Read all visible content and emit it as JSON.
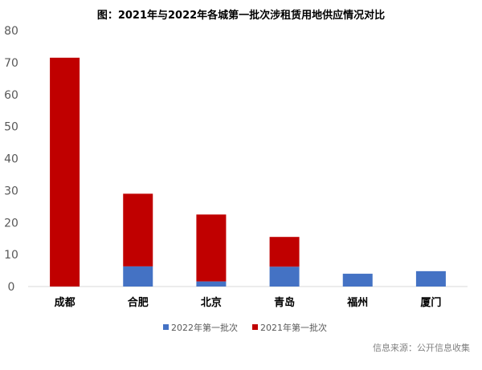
{
  "chart_data": {
    "type": "bar",
    "stacked": true,
    "title": "图：2021年与2022年各城第一批次涉租赁用地供应情况对比",
    "categories": [
      "成都",
      "合肥",
      "北京",
      "青岛",
      "福州",
      "厦门"
    ],
    "series": [
      {
        "name": "2022年第一批次",
        "color": "#4472C4",
        "values": [
          0,
          6.3,
          1.6,
          6.2,
          4.0,
          4.8
        ]
      },
      {
        "name": "2021年第一批次",
        "color": "#C00000",
        "values": [
          71.5,
          22.7,
          20.9,
          9.3,
          0,
          0
        ]
      }
    ],
    "ylim": [
      0,
      80
    ],
    "yticks": [
      0,
      10,
      20,
      30,
      40,
      50,
      60,
      70,
      80
    ],
    "xlabel": "",
    "ylabel": "",
    "grid": false,
    "legend_position": "bottom"
  },
  "source_note": "信息来源：公开信息收集"
}
